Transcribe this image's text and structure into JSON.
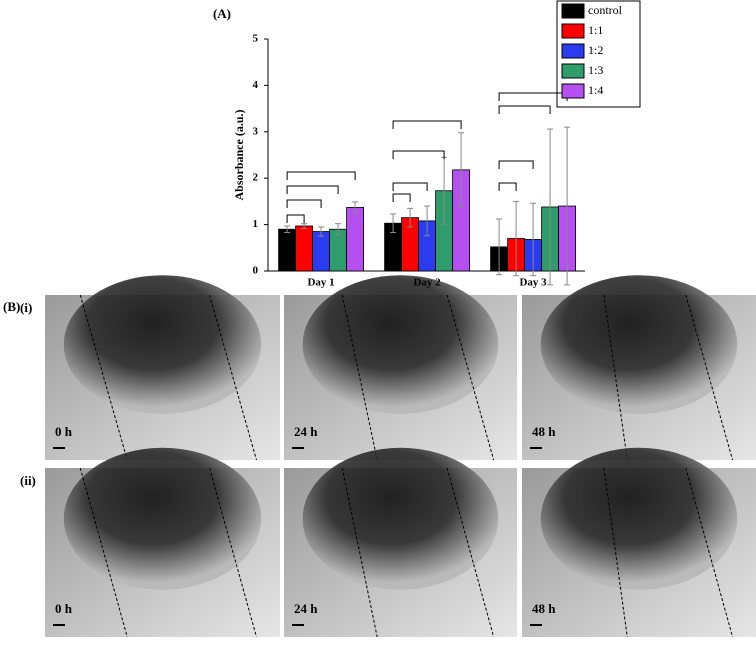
{
  "chart_data": {
    "type": "bar",
    "title": "(A)",
    "y_label": "Absorbance (a.u.)",
    "categories": [
      "Day 1",
      "Day 2",
      "Day 3"
    ],
    "series": [
      {
        "name": "control",
        "color": "#000000",
        "values": [
          0.9,
          1.03,
          0.52
        ],
        "errors": [
          0.07,
          0.2,
          0.6
        ]
      },
      {
        "name": "1:1",
        "color": "#ff0000",
        "values": [
          0.97,
          1.15,
          0.7
        ],
        "errors": [
          0.05,
          0.2,
          0.8
        ]
      },
      {
        "name": "1:2",
        "color": "#2b3cf0",
        "values": [
          0.85,
          1.08,
          0.68
        ],
        "errors": [
          0.1,
          0.32,
          0.78
        ]
      },
      {
        "name": "1:3",
        "color": "#2e9c6b",
        "values": [
          0.9,
          1.73,
          1.38
        ],
        "errors": [
          0.12,
          0.72,
          1.68
        ]
      },
      {
        "name": "1:4",
        "color": "#b54ff0",
        "values": [
          1.37,
          2.18,
          1.4
        ],
        "errors": [
          0.12,
          0.8,
          1.7
        ]
      }
    ],
    "ylim": [
      0,
      5
    ],
    "yticks": [
      0,
      1,
      2,
      3,
      4,
      5
    ],
    "grid": false,
    "legend": "top-right"
  },
  "panel_b": {
    "label": "(B)",
    "rows": [
      {
        "label": "(i)",
        "times": [
          "0 h",
          "24 h",
          "48 h"
        ]
      },
      {
        "label": "(ii)",
        "times": [
          "0 h",
          "24 h",
          "48 h"
        ]
      }
    ]
  }
}
